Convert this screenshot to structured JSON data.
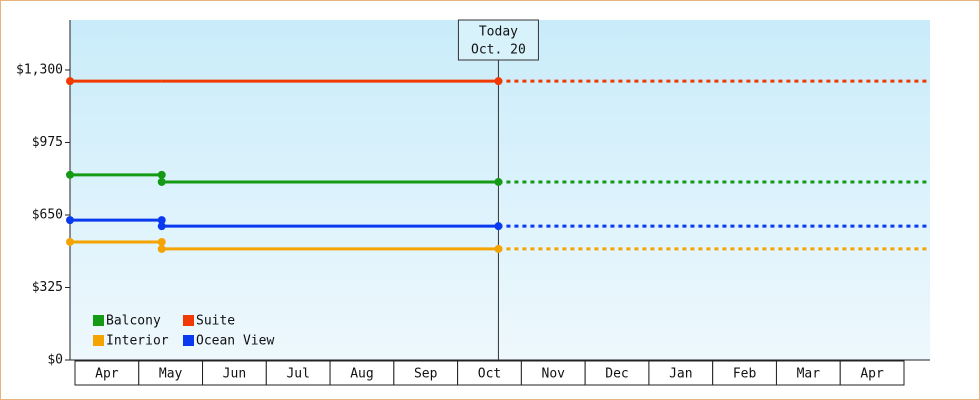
{
  "chart_data": {
    "type": "step-line",
    "annotation": [
      "Today",
      "Oct. 20"
    ],
    "categories": [
      "Apr",
      "May",
      "Jun",
      "Jul",
      "Aug",
      "Sep",
      "Oct",
      "Nov",
      "Dec",
      "Jan",
      "Feb",
      "Mar",
      "Apr"
    ],
    "x": [
      "Apr",
      "May",
      "Oct"
    ],
    "series": [
      {
        "name": "Balcony",
        "color": "#149a14",
        "values": [
          830,
          798,
          798
        ]
      },
      {
        "name": "Suite",
        "color": "#f03a00",
        "values": [
          1250,
          1250,
          1250
        ]
      },
      {
        "name": "Interior",
        "color": "#f5a300",
        "values": [
          529,
          498,
          498
        ]
      },
      {
        "name": "Ocean View",
        "color": "#0a3af0",
        "values": [
          627,
          600,
          600
        ]
      }
    ],
    "ylim": [
      0,
      1524
    ],
    "yticks": [
      {
        "value": 0,
        "label": "$0"
      },
      {
        "value": 325,
        "label": "$325"
      },
      {
        "value": 650,
        "label": "$650"
      },
      {
        "value": 975,
        "label": "$975"
      },
      {
        "value": 1300,
        "label": "$1,300"
      }
    ],
    "grid": false
  }
}
